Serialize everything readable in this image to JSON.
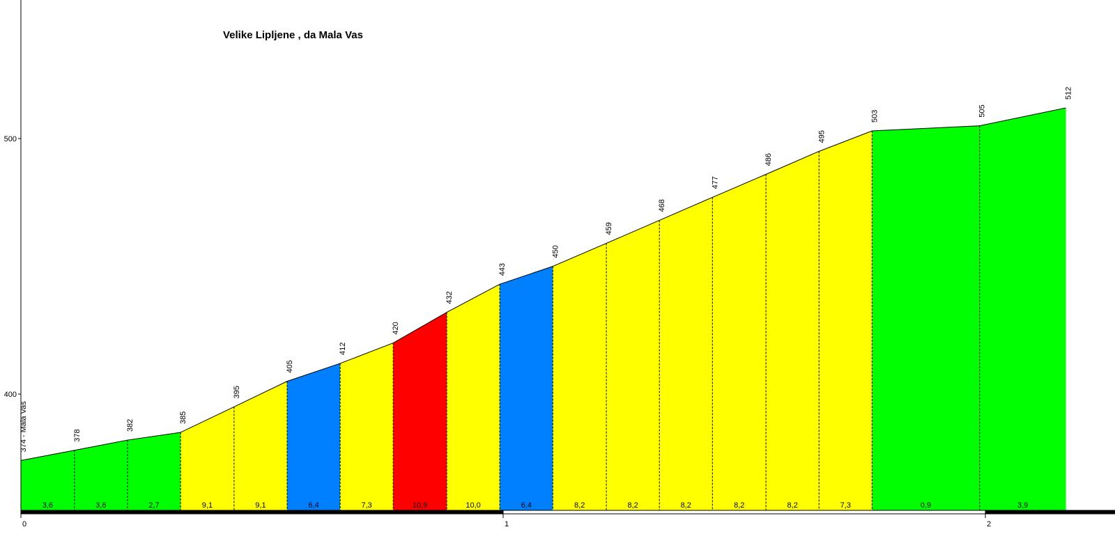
{
  "chart_data": {
    "type": "area",
    "title": "Velike Lipljene , da Mala Vas",
    "xlabel": "",
    "ylabel": "",
    "x_ticks": [
      "0",
      "1",
      "2"
    ],
    "y_ticks": [
      "400",
      "500"
    ],
    "ylim": [
      355,
      555
    ],
    "xlim": [
      0,
      2.27
    ],
    "start_label": "374 - Mala Vas",
    "points": [
      {
        "x": 0.0,
        "elev": 374,
        "label": "374 - Mala Vas"
      },
      {
        "x": 0.111,
        "elev": 378,
        "label": "378"
      },
      {
        "x": 0.221,
        "elev": 382,
        "label": "382"
      },
      {
        "x": 0.331,
        "elev": 385,
        "label": "385"
      },
      {
        "x": 0.442,
        "elev": 395,
        "label": "395"
      },
      {
        "x": 0.552,
        "elev": 405,
        "label": "405"
      },
      {
        "x": 0.662,
        "elev": 412,
        "label": "412"
      },
      {
        "x": 0.772,
        "elev": 420,
        "label": "420"
      },
      {
        "x": 0.883,
        "elev": 432,
        "label": "432"
      },
      {
        "x": 0.993,
        "elev": 443,
        "label": "443"
      },
      {
        "x": 1.103,
        "elev": 450,
        "label": "450"
      },
      {
        "x": 1.214,
        "elev": 459,
        "label": "459"
      },
      {
        "x": 1.324,
        "elev": 468,
        "label": "468"
      },
      {
        "x": 1.434,
        "elev": 477,
        "label": "477"
      },
      {
        "x": 1.545,
        "elev": 486,
        "label": "486"
      },
      {
        "x": 1.655,
        "elev": 495,
        "label": "495"
      },
      {
        "x": 1.765,
        "elev": 503,
        "label": "503"
      },
      {
        "x": 1.988,
        "elev": 505,
        "label": "505"
      },
      {
        "x": 2.167,
        "elev": 512,
        "label": "512"
      }
    ],
    "segments": [
      {
        "gradient": "3,6",
        "color": "#00ff00"
      },
      {
        "gradient": "3,6",
        "color": "#00ff00"
      },
      {
        "gradient": "2,7",
        "color": "#00ff00"
      },
      {
        "gradient": "9,1",
        "color": "#ffff00"
      },
      {
        "gradient": "9,1",
        "color": "#ffff00"
      },
      {
        "gradient": "6,4",
        "color": "#0080ff"
      },
      {
        "gradient": "7,3",
        "color": "#ffff00"
      },
      {
        "gradient": "10,9",
        "color": "#ff0000"
      },
      {
        "gradient": "10,0",
        "color": "#ffff00"
      },
      {
        "gradient": "6,4",
        "color": "#0080ff"
      },
      {
        "gradient": "8,2",
        "color": "#ffff00"
      },
      {
        "gradient": "8,2",
        "color": "#ffff00"
      },
      {
        "gradient": "8,2",
        "color": "#ffff00"
      },
      {
        "gradient": "8,2",
        "color": "#ffff00"
      },
      {
        "gradient": "8,2",
        "color": "#ffff00"
      },
      {
        "gradient": "7,3",
        "color": "#ffff00"
      },
      {
        "gradient": "0,9",
        "color": "#00ff00"
      },
      {
        "gradient": "3,9",
        "color": "#00ff00"
      }
    ],
    "km_bar": [
      {
        "from": 0,
        "to": 1,
        "color": "#000000"
      },
      {
        "from": 1,
        "to": 2,
        "color": "#ffffff"
      },
      {
        "from": 2,
        "to": 2.27,
        "color": "#000000"
      }
    ],
    "grid": false,
    "legend": "none"
  }
}
